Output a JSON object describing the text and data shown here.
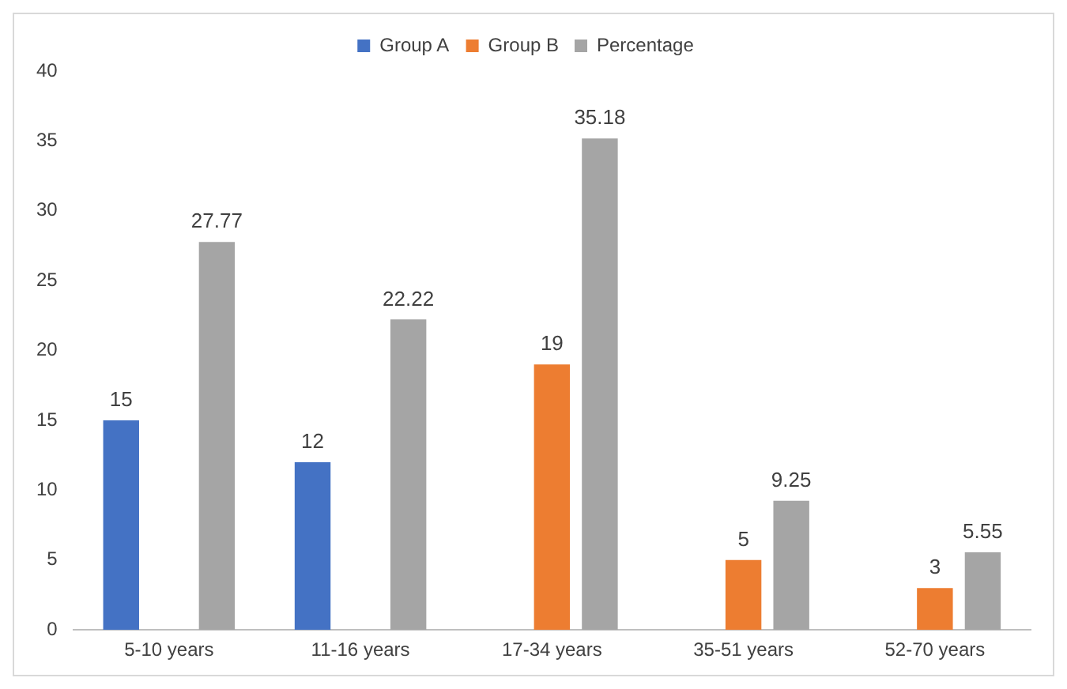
{
  "chart_data": {
    "type": "bar",
    "categories": [
      "5-10 years",
      "11-16 years",
      "17-34 years",
      "35-51 years",
      "52-70 years"
    ],
    "series": [
      {
        "name": "Group A",
        "color": "#4472c4",
        "values": [
          15,
          12,
          null,
          null,
          null
        ]
      },
      {
        "name": "Group B",
        "color": "#ed7d31",
        "values": [
          null,
          null,
          19,
          5,
          3
        ]
      },
      {
        "name": "Percentage",
        "color": "#a5a5a5",
        "values": [
          27.77,
          22.22,
          35.18,
          9.25,
          5.55
        ]
      }
    ],
    "ylim": [
      0,
      40
    ],
    "yticks": [
      0,
      5,
      10,
      15,
      20,
      25,
      30,
      35,
      40
    ],
    "grid": false,
    "legend": "top",
    "data_labels": true
  }
}
